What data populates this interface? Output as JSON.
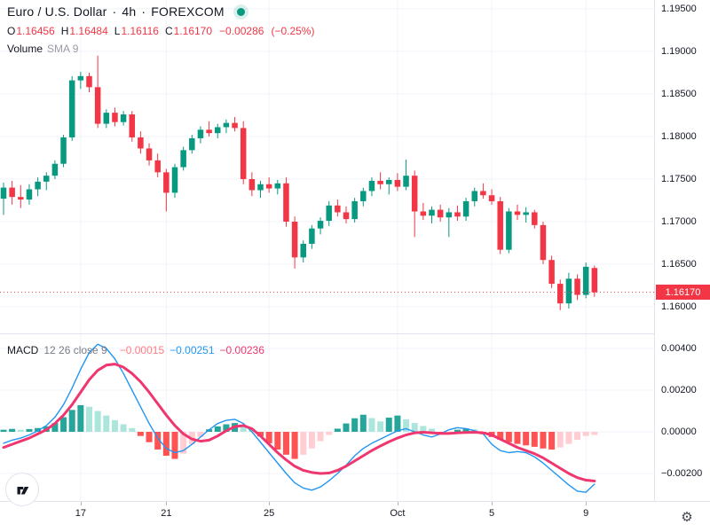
{
  "colors": {
    "up": "#089981",
    "down": "#F23645",
    "macd_line": "#2196F3",
    "signal_line": "#F0366E",
    "hist_grow_above": "#26A69A",
    "hist_fall_above": "#ACE5DC",
    "hist_fall_below": "#FF5252",
    "hist_grow_below": "#FFCDD2",
    "grid": "#F0F3FA",
    "axis_border": "#E0E3EB",
    "text": "#131722",
    "muted_text": "#787B86",
    "last_price": "#F23645",
    "status_dot": "#089981"
  },
  "header": {
    "symbol": "Euro / U.S. Dollar",
    "sep1": "·",
    "interval": "4h",
    "sep2": "·",
    "exchange": "FOREXCOM",
    "ohlc": {
      "o_label": "O",
      "o_value": "1.16456",
      "h_label": "H",
      "h_value": "1.16484",
      "l_label": "L",
      "l_value": "1.16116",
      "c_label": "C",
      "c_value": "1.16170",
      "change": "−0.00286",
      "change_pct": "(−0.25%)"
    },
    "volume_label": "Volume",
    "volume_param": "SMA 9"
  },
  "macd_header": {
    "name": "MACD",
    "params": "12 26 close 9",
    "hist_value": "−0.00015",
    "macd_value": "−0.00251",
    "signal_value": "−0.00236"
  },
  "price_axis": {
    "labels": [
      {
        "label": "1.19500",
        "value": 1.195
      },
      {
        "label": "1.19000",
        "value": 1.19
      },
      {
        "label": "1.18500",
        "value": 1.185
      },
      {
        "label": "1.18000",
        "value": 1.18
      },
      {
        "label": "1.17500",
        "value": 1.175
      },
      {
        "label": "1.17000",
        "value": 1.17
      },
      {
        "label": "1.16500",
        "value": 1.165
      },
      {
        "label": "1.16000",
        "value": 1.16
      }
    ],
    "last_price_badge": "1.16170"
  },
  "macd_axis": {
    "labels": [
      {
        "label": "0.00400",
        "value": 0.004
      },
      {
        "label": "0.00200",
        "value": 0.002
      },
      {
        "label": "0.00000",
        "value": 0
      },
      {
        "label": "−0.00200",
        "value": -0.002
      }
    ]
  },
  "time_axis": {
    "ticks": [
      {
        "label": "17",
        "index": 9
      },
      {
        "label": "21",
        "index": 19
      },
      {
        "label": "25",
        "index": 31
      },
      {
        "label": "Oct",
        "index": 46
      },
      {
        "label": "5",
        "index": 57
      },
      {
        "label": "9",
        "index": 68
      }
    ]
  },
  "footer": {
    "logo_icon": "tradingview-logo",
    "settings_icon": "gear-icon"
  },
  "chart_data": {
    "type": "candlestick_with_macd",
    "title": "Euro / U.S. Dollar",
    "interval": "4h",
    "exchange": "FOREXCOM",
    "last_price": 1.1617,
    "price_axis_range": [
      1.16,
      1.195
    ],
    "macd_axis_range": [
      -0.002,
      0.004
    ],
    "candles": [
      [
        1.1727,
        1.1746,
        1.1708,
        1.174
      ],
      [
        1.174,
        1.1748,
        1.172,
        1.1729
      ],
      [
        1.1729,
        1.1743,
        1.1716,
        1.1726
      ],
      [
        1.1726,
        1.1744,
        1.172,
        1.1738
      ],
      [
        1.1738,
        1.1752,
        1.173,
        1.1747
      ],
      [
        1.1747,
        1.1758,
        1.1737,
        1.1754
      ],
      [
        1.1754,
        1.1772,
        1.175,
        1.1768
      ],
      [
        1.1768,
        1.1802,
        1.1764,
        1.1799
      ],
      [
        1.1799,
        1.1871,
        1.1795,
        1.1866
      ],
      [
        1.1866,
        1.1876,
        1.1856,
        1.1871
      ],
      [
        1.1871,
        1.1875,
        1.1852,
        1.1858
      ],
      [
        1.1858,
        1.1895,
        1.181,
        1.1815
      ],
      [
        1.1815,
        1.1832,
        1.181,
        1.1828
      ],
      [
        1.1828,
        1.1834,
        1.1812,
        1.1817
      ],
      [
        1.1817,
        1.183,
        1.1813,
        1.1826
      ],
      [
        1.1826,
        1.183,
        1.1794,
        1.1799
      ],
      [
        1.1799,
        1.1806,
        1.178,
        1.1786
      ],
      [
        1.1786,
        1.1792,
        1.1766,
        1.1772
      ],
      [
        1.1772,
        1.178,
        1.1752,
        1.1758
      ],
      [
        1.1758,
        1.1762,
        1.1712,
        1.1734
      ],
      [
        1.1734,
        1.1768,
        1.1728,
        1.1764
      ],
      [
        1.1764,
        1.1788,
        1.176,
        1.1784
      ],
      [
        1.1784,
        1.1802,
        1.178,
        1.1798
      ],
      [
        1.1798,
        1.1812,
        1.1792,
        1.1808
      ],
      [
        1.1808,
        1.1818,
        1.18,
        1.1804
      ],
      [
        1.1804,
        1.1815,
        1.1798,
        1.1811
      ],
      [
        1.1811,
        1.182,
        1.1804,
        1.1816
      ],
      [
        1.1816,
        1.1823,
        1.1806,
        1.181
      ],
      [
        1.181,
        1.1818,
        1.1744,
        1.175
      ],
      [
        1.175,
        1.1758,
        1.173,
        1.1737
      ],
      [
        1.1737,
        1.1748,
        1.1728,
        1.1744
      ],
      [
        1.1744,
        1.1752,
        1.1734,
        1.1739
      ],
      [
        1.1739,
        1.1749,
        1.1732,
        1.1745
      ],
      [
        1.1745,
        1.1752,
        1.1694,
        1.17
      ],
      [
        1.17,
        1.1706,
        1.1645,
        1.1658
      ],
      [
        1.1658,
        1.1678,
        1.1652,
        1.1674
      ],
      [
        1.1674,
        1.1696,
        1.1668,
        1.1692
      ],
      [
        1.1692,
        1.1705,
        1.1685,
        1.1701
      ],
      [
        1.1701,
        1.1724,
        1.1695,
        1.1719
      ],
      [
        1.1719,
        1.1726,
        1.1706,
        1.1711
      ],
      [
        1.1711,
        1.1718,
        1.1698,
        1.1703
      ],
      [
        1.1703,
        1.1728,
        1.1699,
        1.1724
      ],
      [
        1.1724,
        1.174,
        1.1718,
        1.1736
      ],
      [
        1.1736,
        1.1752,
        1.173,
        1.1748
      ],
      [
        1.1748,
        1.1758,
        1.1738,
        1.1744
      ],
      [
        1.1744,
        1.1752,
        1.1732,
        1.1749
      ],
      [
        1.1749,
        1.1757,
        1.1736,
        1.1741
      ],
      [
        1.1741,
        1.1773,
        1.1737,
        1.1754
      ],
      [
        1.1754,
        1.176,
        1.1682,
        1.1712
      ],
      [
        1.1712,
        1.1722,
        1.1702,
        1.1707
      ],
      [
        1.1707,
        1.1718,
        1.1698,
        1.1714
      ],
      [
        1.1714,
        1.172,
        1.17,
        1.1705
      ],
      [
        1.1705,
        1.1716,
        1.1682,
        1.1711
      ],
      [
        1.1711,
        1.1719,
        1.1701,
        1.1706
      ],
      [
        1.1706,
        1.1728,
        1.1701,
        1.1724
      ],
      [
        1.1724,
        1.174,
        1.1718,
        1.1736
      ],
      [
        1.1736,
        1.1745,
        1.1727,
        1.1731
      ],
      [
        1.1731,
        1.1738,
        1.172,
        1.1724
      ],
      [
        1.1724,
        1.1729,
        1.1662,
        1.1667
      ],
      [
        1.1667,
        1.1716,
        1.1663,
        1.1712
      ],
      [
        1.1712,
        1.172,
        1.1702,
        1.1708
      ],
      [
        1.1708,
        1.1717,
        1.1699,
        1.1711
      ],
      [
        1.1711,
        1.1714,
        1.1692,
        1.1696
      ],
      [
        1.1696,
        1.17,
        1.165,
        1.1655
      ],
      [
        1.1655,
        1.166,
        1.1622,
        1.1627
      ],
      [
        1.1627,
        1.1632,
        1.1596,
        1.1604
      ],
      [
        1.1604,
        1.164,
        1.1598,
        1.1633
      ],
      [
        1.1633,
        1.1638,
        1.1608,
        1.1614
      ],
      [
        1.1614,
        1.1652,
        1.161,
        1.1647
      ],
      [
        1.16456,
        1.16484,
        1.16116,
        1.1617
      ]
    ],
    "macd": {
      "hist": [
        0.0001,
        0.00014,
        0.0001,
        0.00013,
        0.00018,
        0.00026,
        0.00042,
        0.0007,
        0.00105,
        0.00128,
        0.0012,
        0.001,
        0.00078,
        0.00056,
        0.00036,
        0.00018,
        -0.0002,
        -0.0005,
        -0.00085,
        -0.00115,
        -0.0013,
        -0.00105,
        -0.0006,
        -0.00025,
        0.00012,
        0.00026,
        0.00036,
        0.00042,
        0.00032,
        0.00016,
        -0.00022,
        -0.00055,
        -0.00085,
        -0.0011,
        -0.0013,
        -0.0011,
        -0.0008,
        -0.00045,
        -0.00015,
        0.00015,
        0.0004,
        0.00065,
        0.00082,
        0.00066,
        0.0005,
        0.00068,
        0.00078,
        0.0006,
        0.00042,
        0.00028,
        0.00015,
        -0.00012,
        -0.0001,
        0.0001,
        0.00016,
        0.00012,
        -0.00012,
        -0.00025,
        -0.00038,
        -0.0005,
        -0.00058,
        -0.00065,
        -0.00072,
        -0.0008,
        -0.00085,
        -0.00075,
        -0.00058,
        -0.00038,
        -0.0002,
        -0.00015
      ],
      "macd_line": [
        -0.00055,
        -0.0004,
        -0.0003,
        -0.00015,
        5e-05,
        0.0003,
        0.0007,
        0.0013,
        0.0021,
        0.003,
        0.0038,
        0.0042,
        0.004,
        0.0035,
        0.0028,
        0.002,
        0.0012,
        0.0004,
        -0.0003,
        -0.0008,
        -0.001,
        -0.0009,
        -0.0006,
        -0.00025,
        0.0001,
        0.0004,
        0.00055,
        0.0006,
        0.0004,
        0.0,
        -0.0005,
        -0.001,
        -0.0015,
        -0.002,
        -0.00245,
        -0.0027,
        -0.0028,
        -0.00265,
        -0.00235,
        -0.002,
        -0.0016,
        -0.00115,
        -0.0008,
        -0.00055,
        -0.00035,
        -0.00015,
        5e-05,
        0.00015,
        0.0,
        -0.00015,
        -0.00025,
        -0.0001,
        0.0001,
        0.0002,
        0.00015,
        5e-05,
        -0.0001,
        -0.0006,
        -0.0009,
        -0.001,
        -0.00095,
        -0.001,
        -0.0012,
        -0.0015,
        -0.00185,
        -0.0022,
        -0.00255,
        -0.00285,
        -0.0029,
        -0.00251
      ],
      "signal_line": [
        -0.00075,
        -0.0006,
        -0.00045,
        -0.0003,
        -0.0001,
        0.0001,
        0.0004,
        0.0008,
        0.0013,
        0.0019,
        0.0025,
        0.00295,
        0.0032,
        0.00325,
        0.0031,
        0.0028,
        0.0024,
        0.0019,
        0.00135,
        0.0008,
        0.0003,
        -0.0001,
        -0.00035,
        -0.00045,
        -0.0004,
        -0.0002,
        5e-05,
        0.00025,
        0.0003,
        0.00015,
        -0.0002,
        -0.0006,
        -0.001,
        -0.00135,
        -0.00165,
        -0.00185,
        -0.00195,
        -0.002,
        -0.00198,
        -0.00185,
        -0.00165,
        -0.0014,
        -0.00115,
        -0.0009,
        -0.00068,
        -0.00048,
        -0.0003,
        -0.00015,
        -5e-05,
        -2e-05,
        -5e-05,
        -8e-05,
        -8e-05,
        -5e-05,
        -3e-05,
        -2e-05,
        -5e-05,
        -0.00015,
        -0.00035,
        -0.00055,
        -0.00075,
        -0.0009,
        -0.00105,
        -0.00125,
        -0.0015,
        -0.00175,
        -0.002,
        -0.0022,
        -0.00232,
        -0.00236
      ]
    }
  }
}
